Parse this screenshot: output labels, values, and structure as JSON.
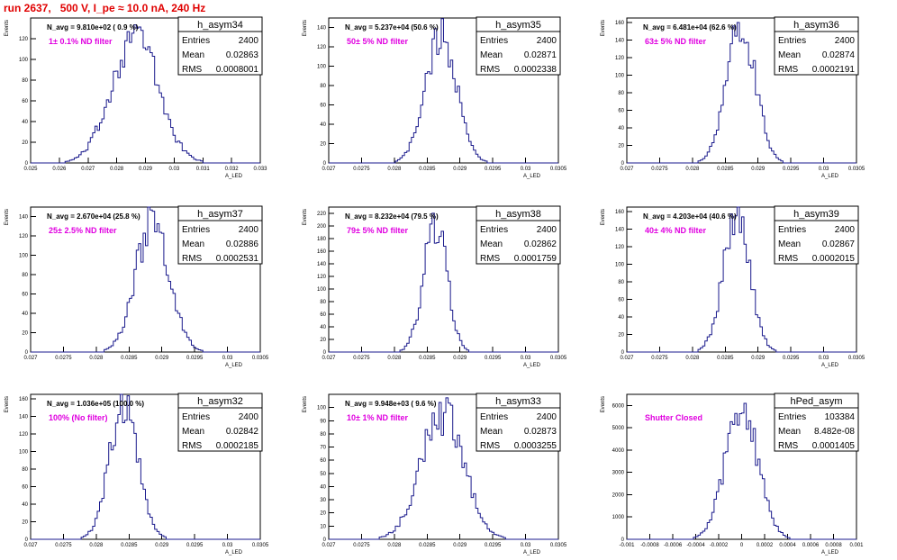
{
  "page_title": "run 2637,   500 V, I_pe ≈ 10.0 nA, 240 Hz",
  "colors": {
    "histogram": "#1a1a8c",
    "title": "#e00000",
    "filter_label": "#e000e0"
  },
  "chart_data": [
    {
      "type": "bar",
      "name": "h_asym34",
      "stats": {
        "entries": "2400",
        "mean": "0.02863",
        "rms": "0.0008001"
      },
      "n_avg": "N_avg = 9.810e+02 ( 0.9 %)",
      "filter": "1± 0.1% ND filter",
      "ylabel": "Events",
      "xlabel": "A_LED",
      "xlim": [
        0.025,
        0.033
      ],
      "ylim": [
        0,
        140
      ],
      "xticks": [
        "0.025",
        "0.026",
        "0.027",
        "0.028",
        "0.029",
        "0.03",
        "0.031",
        "0.032",
        "0.033"
      ],
      "yticks": [
        0,
        20,
        40,
        60,
        80,
        100,
        120
      ],
      "mean": 0.02863,
      "rms": 0.0008001,
      "peak": 125
    },
    {
      "type": "bar",
      "name": "h_asym35",
      "stats": {
        "entries": "2400",
        "mean": "0.02871",
        "rms": "0.0002338"
      },
      "n_avg": "N_avg = 5.237e+04 (50.6 %)",
      "filter": "50± 5% ND filter",
      "ylabel": "Events",
      "xlabel": "A_LED",
      "xlim": [
        0.027,
        0.0305
      ],
      "ylim": [
        0,
        150
      ],
      "xticks": [
        "0.027",
        "0.0275",
        "0.028",
        "0.0285",
        "0.029",
        "0.0295",
        "0.03",
        "0.0305"
      ],
      "yticks": [
        0,
        20,
        40,
        60,
        80,
        100,
        120,
        140
      ],
      "mean": 0.02871,
      "rms": 0.0002338,
      "peak": 136
    },
    {
      "type": "bar",
      "name": "h_asym36",
      "stats": {
        "entries": "2400",
        "mean": "0.02874",
        "rms": "0.0002191"
      },
      "n_avg": "N_avg = 6.481e+04 (62.6 %)",
      "filter": "63± 5% ND filter",
      "ylabel": "Events",
      "xlabel": "A_LED",
      "xlim": [
        0.027,
        0.0305
      ],
      "ylim": [
        0,
        165
      ],
      "xticks": [
        "0.027",
        "0.0275",
        "0.028",
        "0.0285",
        "0.029",
        "0.0295",
        "0.03",
        "0.0305"
      ],
      "yticks": [
        0,
        20,
        40,
        60,
        80,
        100,
        120,
        140,
        160
      ],
      "mean": 0.02874,
      "rms": 0.0002191,
      "peak": 158
    },
    {
      "type": "bar",
      "name": "h_asym37",
      "stats": {
        "entries": "2400",
        "mean": "0.02886",
        "rms": "0.0002531"
      },
      "n_avg": "N_avg = 2.670e+04 (25.8 %)",
      "filter": "25± 2.5% ND filter",
      "ylabel": "Events",
      "xlabel": "A_LED",
      "xlim": [
        0.027,
        0.0305
      ],
      "ylim": [
        0,
        150
      ],
      "xticks": [
        "0.027",
        "0.0275",
        "0.028",
        "0.0285",
        "0.029",
        "0.0295",
        "0.03",
        "0.0305"
      ],
      "yticks": [
        0,
        20,
        40,
        60,
        80,
        100,
        120,
        140
      ],
      "mean": 0.02886,
      "rms": 0.0002531,
      "peak": 138
    },
    {
      "type": "bar",
      "name": "h_asym38",
      "stats": {
        "entries": "2400",
        "mean": "0.02862",
        "rms": "0.0001759"
      },
      "n_avg": "N_avg = 8.232e+04 (79.5 %)",
      "filter": "79± 5% ND filter",
      "ylabel": "Events",
      "xlabel": "A_LED",
      "xlim": [
        0.027,
        0.0305
      ],
      "ylim": [
        0,
        230
      ],
      "xticks": [
        "0.027",
        "0.0275",
        "0.028",
        "0.0285",
        "0.029",
        "0.0295",
        "0.03",
        "0.0305"
      ],
      "yticks": [
        0,
        20,
        40,
        60,
        80,
        100,
        120,
        140,
        160,
        180,
        200,
        220
      ],
      "mean": 0.02862,
      "rms": 0.0001759,
      "peak": 205
    },
    {
      "type": "bar",
      "name": "h_asym39",
      "stats": {
        "entries": "2400",
        "mean": "0.02867",
        "rms": "0.0002015"
      },
      "n_avg": "N_avg = 4.203e+04 (40.6 %)",
      "filter": "40± 4% ND filter",
      "ylabel": "Events",
      "xlabel": "A_LED",
      "xlim": [
        0.027,
        0.0305
      ],
      "ylim": [
        0,
        165
      ],
      "xticks": [
        "0.027",
        "0.0275",
        "0.028",
        "0.0285",
        "0.029",
        "0.0295",
        "0.03",
        "0.0305"
      ],
      "yticks": [
        0,
        20,
        40,
        60,
        80,
        100,
        120,
        140,
        160
      ],
      "mean": 0.02867,
      "rms": 0.0002015,
      "peak": 155
    },
    {
      "type": "bar",
      "name": "h_asym32",
      "stats": {
        "entries": "2400",
        "mean": "0.02842",
        "rms": "0.0002185"
      },
      "n_avg": "N_avg = 1.036e+05 (100.0 %)",
      "filter": "100% (No filter)",
      "ylabel": "Events",
      "xlabel": "A_LED",
      "xlim": [
        0.027,
        0.0305
      ],
      "ylim": [
        0,
        165
      ],
      "xticks": [
        "0.027",
        "0.0275",
        "0.028",
        "0.0285",
        "0.029",
        "0.0295",
        "0.03",
        "0.0305"
      ],
      "yticks": [
        0,
        20,
        40,
        60,
        80,
        100,
        120,
        140,
        160
      ],
      "mean": 0.02842,
      "rms": 0.0002185,
      "peak": 150
    },
    {
      "type": "bar",
      "name": "h_asym33",
      "stats": {
        "entries": "2400",
        "mean": "0.02873",
        "rms": "0.0003255"
      },
      "n_avg": "N_avg = 9.948e+03 ( 9.6 %)",
      "filter": "10± 1% ND filter",
      "ylabel": "Events",
      "xlabel": "A_LED",
      "xlim": [
        0.027,
        0.0305
      ],
      "ylim": [
        0,
        110
      ],
      "xticks": [
        "0.027",
        "0.0275",
        "0.028",
        "0.0285",
        "0.029",
        "0.0295",
        "0.03",
        "0.0305"
      ],
      "yticks": [
        0,
        10,
        20,
        30,
        40,
        50,
        60,
        70,
        80,
        90,
        100
      ],
      "mean": 0.02873,
      "rms": 0.0003255,
      "peak": 95
    },
    {
      "type": "bar",
      "name": "hPed_asym",
      "stats": {
        "entries": "103384",
        "mean": "8.482e-08",
        "rms": "0.0001405"
      },
      "n_avg": "",
      "filter": "Shutter Closed",
      "ylabel": "Events",
      "xlabel": "A_LED",
      "xlim": [
        -0.001,
        0.001
      ],
      "ylim": [
        0,
        6500
      ],
      "xticks": [
        "-0.001",
        "-0.0008",
        "-0.0006",
        "-0.0004",
        "-0.0002",
        "0",
        "0.0002",
        "0.0004",
        "0.0006",
        "0.0008",
        "0.001"
      ],
      "yticks": [
        0,
        1000,
        2000,
        3000,
        4000,
        5000,
        6000
      ],
      "mean": 8.48e-08,
      "rms": 0.0001405,
      "peak": 5850
    }
  ]
}
